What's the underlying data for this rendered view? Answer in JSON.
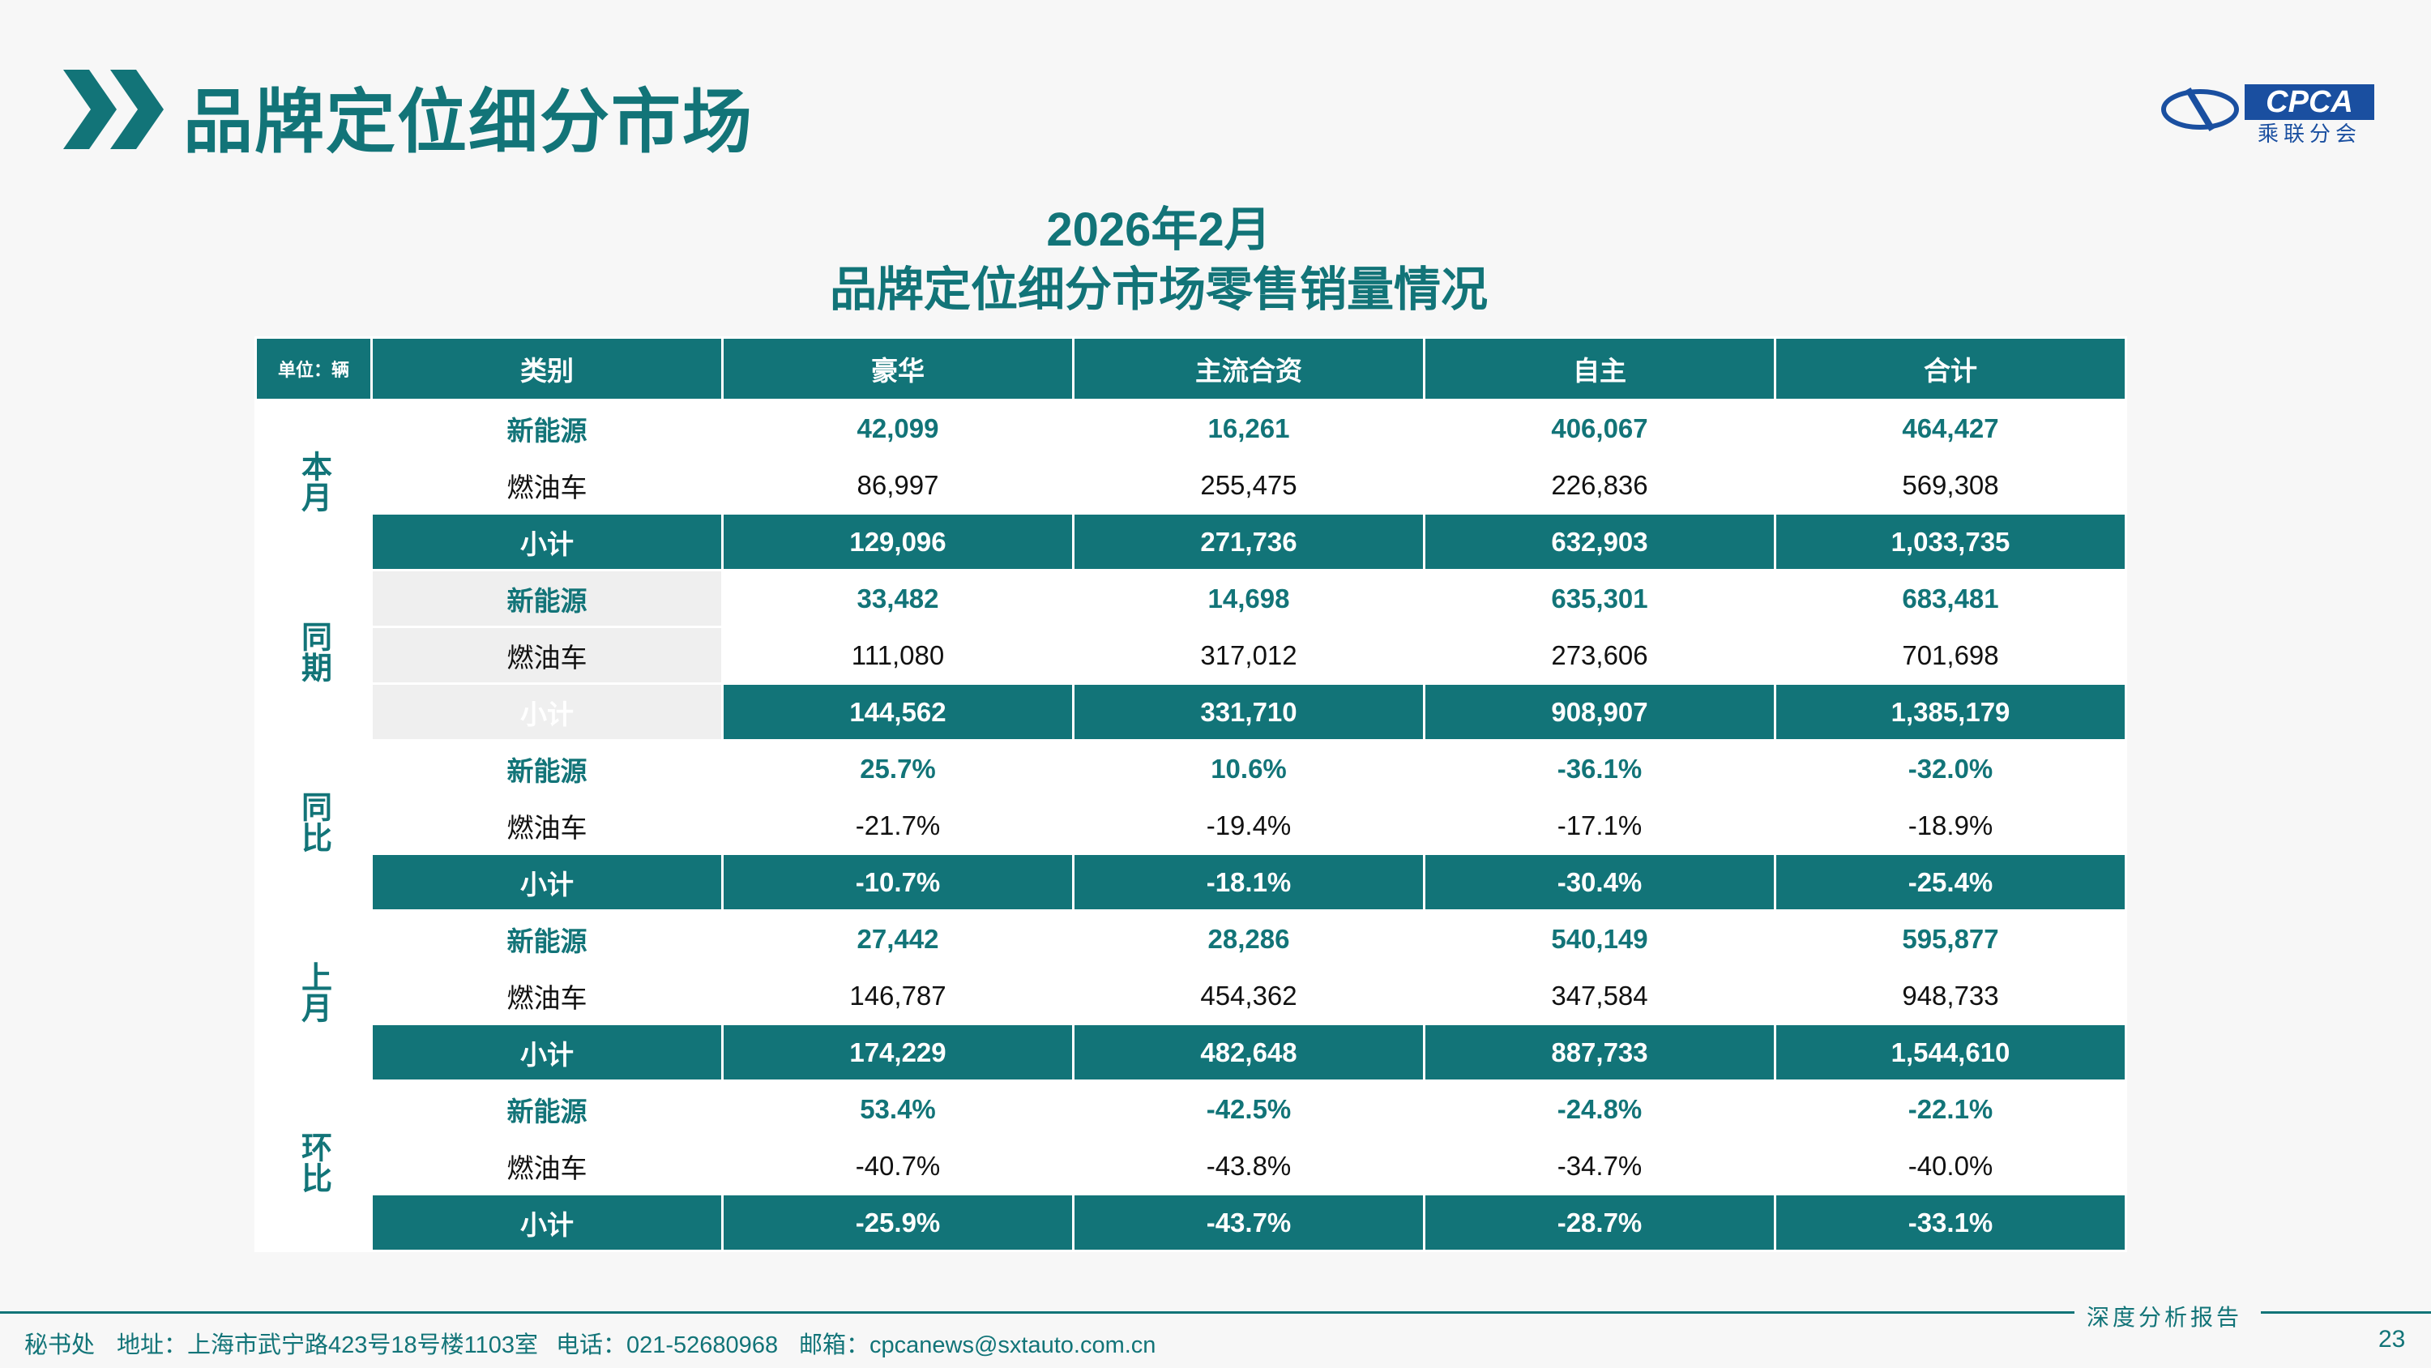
{
  "header": {
    "title": "品牌定位细分市场",
    "logo": {
      "mark": "CPCA",
      "name": "乘联分会"
    }
  },
  "table": {
    "title": [
      "2026年2月",
      "品牌定位细分市场零售销量情况"
    ],
    "unit": "单位：辆",
    "columns": [
      "类别",
      "豪华",
      "主流合资",
      "自主",
      "合计"
    ],
    "groups": [
      {
        "label": "本月",
        "rows": [
          {
            "type": "新能源",
            "values": [
              "42,099",
              "16,261",
              "406,067",
              "464,427"
            ]
          },
          {
            "type": "燃油车",
            "values": [
              "86,997",
              "255,475",
              "226,836",
              "569,308"
            ]
          },
          {
            "type": "小计",
            "values": [
              "129,096",
              "271,736",
              "632,903",
              "1,033,735"
            ]
          }
        ]
      },
      {
        "label": "同期",
        "rows": [
          {
            "type": "新能源",
            "values": [
              "33,482",
              "14,698",
              "635,301",
              "683,481"
            ]
          },
          {
            "type": "燃油车",
            "values": [
              "111,080",
              "317,012",
              "273,606",
              "701,698"
            ]
          },
          {
            "type": "小计",
            "values": [
              "144,562",
              "331,710",
              "908,907",
              "1,385,179"
            ]
          }
        ]
      },
      {
        "label": "同比",
        "rows": [
          {
            "type": "新能源",
            "values": [
              "25.7%",
              "10.6%",
              "-36.1%",
              "-32.0%"
            ]
          },
          {
            "type": "燃油车",
            "values": [
              "-21.7%",
              "-19.4%",
              "-17.1%",
              "-18.9%"
            ]
          },
          {
            "type": "小计",
            "values": [
              "-10.7%",
              "-18.1%",
              "-30.4%",
              "-25.4%"
            ]
          }
        ]
      },
      {
        "label": "上月",
        "rows": [
          {
            "type": "新能源",
            "values": [
              "27,442",
              "28,286",
              "540,149",
              "595,877"
            ]
          },
          {
            "type": "燃油车",
            "values": [
              "146,787",
              "454,362",
              "347,584",
              "948,733"
            ]
          },
          {
            "type": "小计",
            "values": [
              "174,229",
              "482,648",
              "887,733",
              "1,544,610"
            ]
          }
        ]
      },
      {
        "label": "环比",
        "rows": [
          {
            "type": "新能源",
            "values": [
              "53.4%",
              "-42.5%",
              "-24.8%",
              "-22.1%"
            ]
          },
          {
            "type": "燃油车",
            "values": [
              "-40.7%",
              "-43.8%",
              "-34.7%",
              "-40.0%"
            ]
          },
          {
            "type": "小计",
            "values": [
              "-25.9%",
              "-43.7%",
              "-28.7%",
              "-33.1%"
            ]
          }
        ]
      }
    ]
  },
  "footer": {
    "office": "秘书处",
    "address": "地址：上海市武宁路423号18号楼1103室",
    "phone": "电话：021-52680968",
    "email": "邮箱：cpcanews@sxtauto.com.cn",
    "report": "深度分析报告",
    "page": "23"
  }
}
